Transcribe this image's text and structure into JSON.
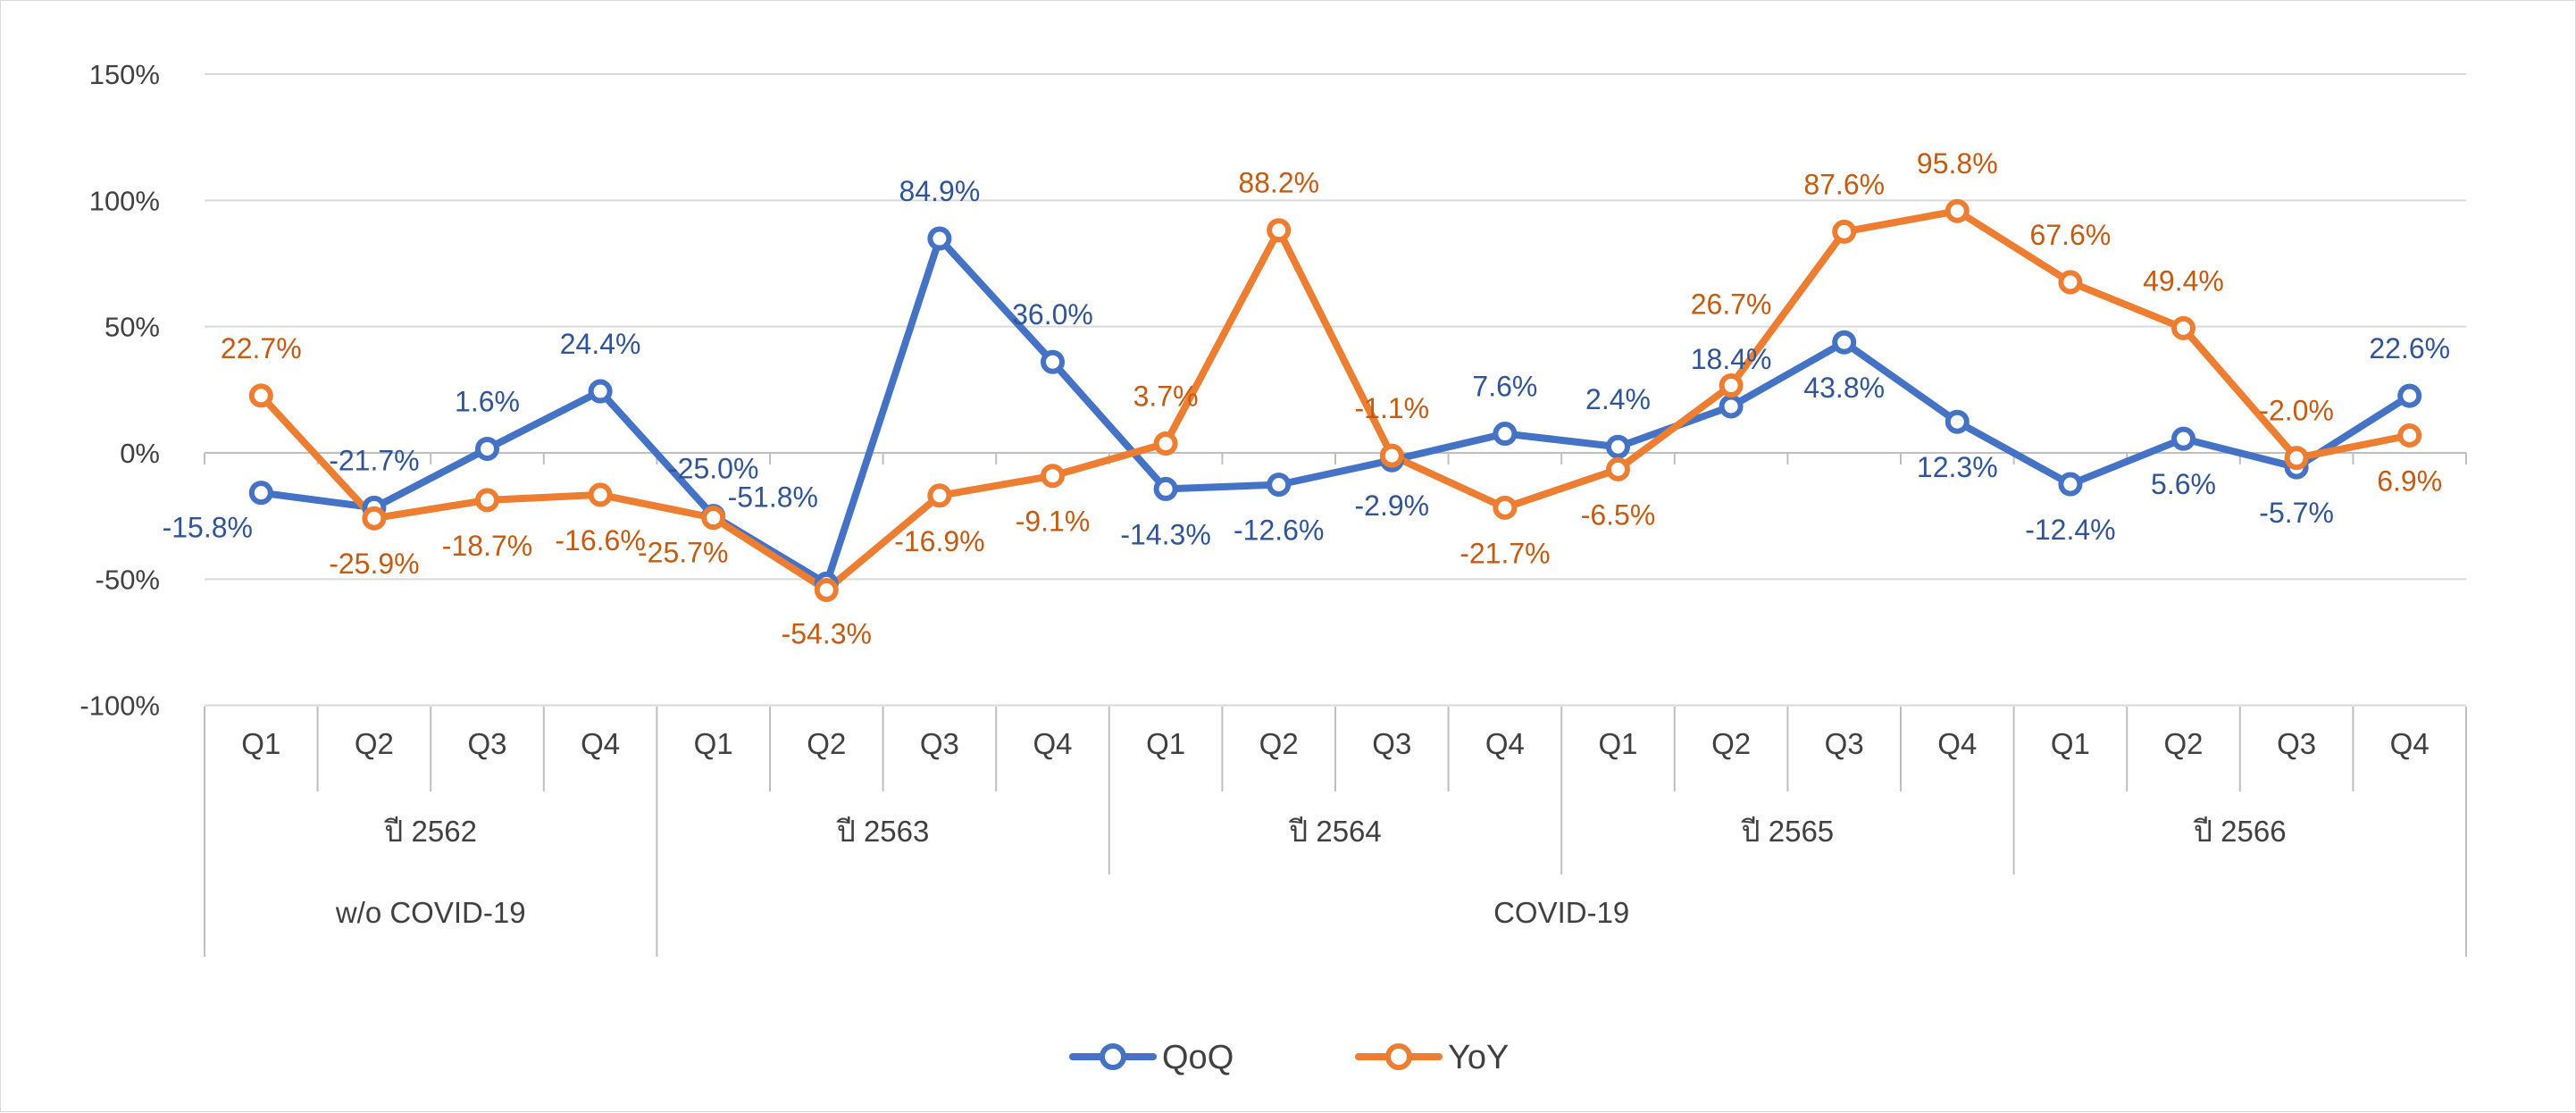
{
  "chart_data": {
    "type": "line",
    "title": "",
    "xlabel": "",
    "ylabel": "",
    "ylim": [
      -100,
      150
    ],
    "y_ticks": [
      "150%",
      "100%",
      "50%",
      "0%",
      "-50%",
      "-100%"
    ],
    "y_tick_values": [
      150,
      100,
      50,
      0,
      -50,
      -100
    ],
    "grid": true,
    "legend_position": "bottom",
    "categories": [
      "Q1",
      "Q2",
      "Q3",
      "Q4",
      "Q1",
      "Q2",
      "Q3",
      "Q4",
      "Q1",
      "Q2",
      "Q3",
      "Q4",
      "Q1",
      "Q2",
      "Q3",
      "Q4",
      "Q1",
      "Q2",
      "Q3",
      "Q4"
    ],
    "year_groups": [
      {
        "label": "ปี 2562",
        "count": 4
      },
      {
        "label": "ปี 2563",
        "count": 4
      },
      {
        "label": "ปี 2564",
        "count": 4
      },
      {
        "label": "ปี 2565",
        "count": 4
      },
      {
        "label": "ปี 2566",
        "count": 4
      }
    ],
    "period_groups": [
      {
        "label": "w/o COVID-19",
        "count": 4
      },
      {
        "label": "COVID-19",
        "count": 16
      }
    ],
    "series": [
      {
        "name": "QoQ",
        "color": "#4472c4",
        "label_color": "#2f5597",
        "values": [
          -15.8,
          -21.7,
          1.6,
          24.4,
          -25.0,
          -51.8,
          84.9,
          36.0,
          -14.3,
          -12.6,
          -2.9,
          7.6,
          2.4,
          18.4,
          43.8,
          12.3,
          -12.4,
          5.6,
          -5.7,
          22.6
        ],
        "labels": [
          "-15.8%",
          "-21.7%",
          "1.6%",
          "24.4%",
          "-25.0%",
          "-51.8%",
          "84.9%",
          "36.0%",
          "-14.3%",
          "-12.6%",
          "-2.9%",
          "7.6%",
          "2.4%",
          "18.4%",
          "43.8%",
          "12.3%",
          "-12.4%",
          "5.6%",
          "-5.7%",
          "22.6%"
        ]
      },
      {
        "name": "YoY",
        "color": "#ed7d31",
        "label_color": "#c55a11",
        "values": [
          22.7,
          -25.9,
          -18.7,
          -16.6,
          -25.7,
          -54.3,
          -16.9,
          -9.1,
          3.7,
          88.2,
          -1.1,
          -21.7,
          -6.5,
          26.7,
          87.6,
          95.8,
          67.6,
          49.4,
          -2.0,
          6.9
        ],
        "labels": [
          "22.7%",
          "-25.9%",
          "-18.7%",
          "-16.6%",
          "-25.7%",
          "-54.3%",
          "-16.9%",
          "-9.1%",
          "3.7%",
          "88.2%",
          "-1.1%",
          "-21.7%",
          "-6.5%",
          "26.7%",
          "87.6%",
          "95.8%",
          "67.6%",
          "49.4%",
          "-2.0%",
          "6.9%"
        ]
      }
    ]
  }
}
